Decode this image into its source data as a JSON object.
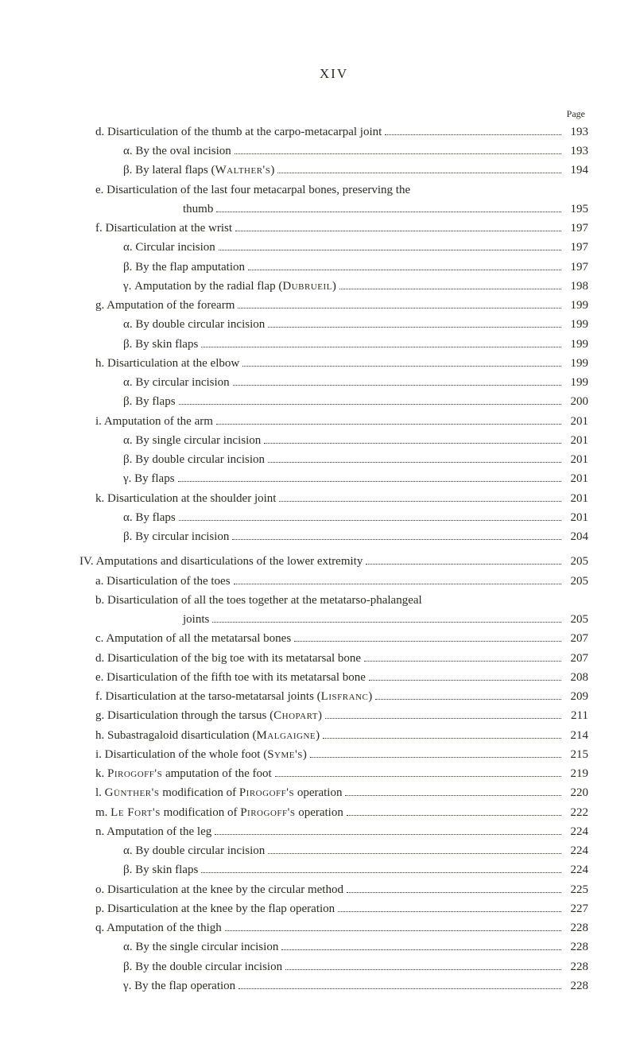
{
  "header": {
    "roman": "XIV",
    "page_label": "Page"
  },
  "entries": [
    {
      "indent": 1,
      "marker": "d.",
      "text": "Disarticulation of the thumb at the carpo-metacarpal joint",
      "dots": true,
      "page": "193"
    },
    {
      "indent": 2,
      "marker": "α.",
      "text": "By the oval incision",
      "dots": true,
      "page": "193"
    },
    {
      "indent": 2,
      "marker": "β.",
      "text": "By lateral flaps (",
      "sc": "Walther's",
      "text2": ")",
      "dots": true,
      "page": "194"
    },
    {
      "indent": 1,
      "marker": "e.",
      "text": "Disarticulation of the last four metacarpal bones, preserving the",
      "dots": false,
      "page": ""
    },
    {
      "indent": "cont",
      "marker": "",
      "text": "thumb",
      "dots": true,
      "page": "195"
    },
    {
      "indent": 1,
      "marker": "f.",
      "text": "Disarticulation at the wrist",
      "dots": true,
      "page": "197"
    },
    {
      "indent": 2,
      "marker": "α.",
      "text": "Circular incision",
      "dots": true,
      "page": "197"
    },
    {
      "indent": 2,
      "marker": "β.",
      "text": "By the flap amputation",
      "dots": true,
      "page": "197"
    },
    {
      "indent": 2,
      "marker": "γ.",
      "text": "Amputation by the radial flap (",
      "sc": "Dubrueil",
      "text2": ")",
      "dots": true,
      "page": "198"
    },
    {
      "indent": 1,
      "marker": "g.",
      "text": "Amputation of the forearm",
      "dots": true,
      "page": "199"
    },
    {
      "indent": 2,
      "marker": "α.",
      "text": "By double circular incision",
      "dots": true,
      "page": "199"
    },
    {
      "indent": 2,
      "marker": "β.",
      "text": "By skin flaps",
      "dots": true,
      "page": "199"
    },
    {
      "indent": 1,
      "marker": "h.",
      "text": "Disarticulation at the elbow",
      "dots": true,
      "page": "199"
    },
    {
      "indent": 2,
      "marker": "α.",
      "text": "By circular incision",
      "dots": true,
      "page": "199"
    },
    {
      "indent": 2,
      "marker": "β.",
      "text": "By flaps",
      "dots": true,
      "page": "200"
    },
    {
      "indent": 1,
      "marker": "i.",
      "text": "Amputation of the arm",
      "dots": true,
      "page": "201"
    },
    {
      "indent": 2,
      "marker": "α.",
      "text": "By single circular incision",
      "dots": true,
      "page": "201"
    },
    {
      "indent": 2,
      "marker": "β.",
      "text": "By double circular incision",
      "dots": true,
      "page": "201"
    },
    {
      "indent": 2,
      "marker": "γ.",
      "text": "By flaps",
      "dots": true,
      "page": "201"
    },
    {
      "indent": 1,
      "marker": "k.",
      "text": "Disarticulation at the shoulder joint",
      "dots": true,
      "page": "201"
    },
    {
      "indent": 2,
      "marker": "α.",
      "text": "By flaps",
      "dots": true,
      "page": "201"
    },
    {
      "indent": 2,
      "marker": "β.",
      "text": "By circular incision",
      "dots": true,
      "page": "204"
    },
    {
      "gap": true,
      "indent": 0,
      "marker": "IV.",
      "text": "Amputations and disarticulations of the lower extremity",
      "dots": true,
      "page": "205"
    },
    {
      "indent": 1,
      "marker": "a.",
      "text": "Disarticulation of the toes",
      "dots": true,
      "page": "205"
    },
    {
      "indent": 1,
      "marker": "b.",
      "text": "Disarticulation of all the toes together at the metatarso-phalangeal",
      "dots": false,
      "page": ""
    },
    {
      "indent": "cont",
      "marker": "",
      "text": "joints",
      "dots": true,
      "page": "205"
    },
    {
      "indent": 1,
      "marker": "c.",
      "text": "Amputation of all the metatarsal bones",
      "dots": true,
      "page": "207"
    },
    {
      "indent": 1,
      "marker": "d.",
      "text": "Disarticulation of the big toe with its metatarsal bone",
      "dots": true,
      "page": "207"
    },
    {
      "indent": 1,
      "marker": "e.",
      "text": "Disarticulation of the fifth toe with its metatarsal bone",
      "dots": true,
      "page": "208"
    },
    {
      "indent": 1,
      "marker": "f.",
      "text": "Disarticulation at the tarso-metatarsal joints (",
      "sc": "Lisfranc",
      "text2": ")",
      "dots": true,
      "page": "209"
    },
    {
      "indent": 1,
      "marker": "g.",
      "text": "Disarticulation through the tarsus (",
      "sc": "Chopart",
      "text2": ")",
      "dots": true,
      "page": "211"
    },
    {
      "indent": 1,
      "marker": "h.",
      "text": "Subastragaloid disarticulation (",
      "sc": "Malgaigne",
      "text2": ")",
      "dots": true,
      "page": "214"
    },
    {
      "indent": 1,
      "marker": "i.",
      "text": "Disarticulation of the whole foot (",
      "sc": "Syme's",
      "text2": ")",
      "dots": true,
      "page": "215"
    },
    {
      "indent": 1,
      "marker": "k.",
      "text": "",
      "sc": "Pirogoff's",
      "text2": " amputation of the foot",
      "dots": true,
      "page": "219"
    },
    {
      "indent": 1,
      "marker": "l.",
      "text": "",
      "sc": "Günther's",
      "text2": " modification of ",
      "sc2": "Pirogoff's",
      "text3": " operation",
      "dots": true,
      "page": "220"
    },
    {
      "indent": 1,
      "marker": "m.",
      "text": "",
      "sc": "Le Fort's",
      "text2": " modification of ",
      "sc2": "Pirogoff's",
      "text3": " operation",
      "dots": true,
      "page": "222"
    },
    {
      "indent": 1,
      "marker": "n.",
      "text": "Amputation of the leg",
      "dots": true,
      "page": "224"
    },
    {
      "indent": 2,
      "marker": "α.",
      "text": "By double circular incision",
      "dots": true,
      "page": "224"
    },
    {
      "indent": 2,
      "marker": "β.",
      "text": "By skin flaps",
      "dots": true,
      "page": "224"
    },
    {
      "indent": 1,
      "marker": "o.",
      "text": "Disarticulation at the knee by the circular method",
      "dots": true,
      "page": "225"
    },
    {
      "indent": 1,
      "marker": "p.",
      "text": "Disarticulation at the knee by the flap operation",
      "dots": true,
      "page": "227"
    },
    {
      "indent": 1,
      "marker": "q.",
      "text": "Amputation of the thigh",
      "dots": true,
      "page": "228"
    },
    {
      "indent": 2,
      "marker": "α.",
      "text": "By the single circular incision",
      "dots": true,
      "page": "228"
    },
    {
      "indent": 2,
      "marker": "β.",
      "text": "By the double circular incision",
      "dots": true,
      "page": "228"
    },
    {
      "indent": 2,
      "marker": "γ.",
      "text": "By the flap operation",
      "dots": true,
      "page": "228"
    }
  ]
}
